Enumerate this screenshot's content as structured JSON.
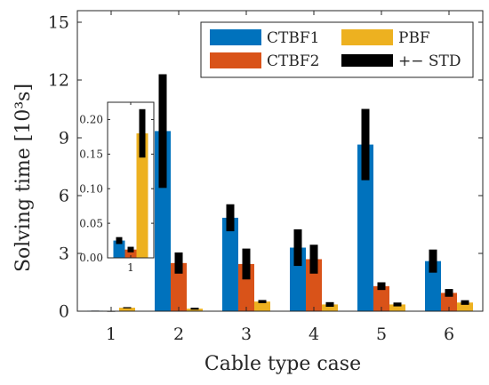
{
  "chart_data": [
    {
      "type": "bar",
      "xlabel": "Cable type case",
      "ylabel": "Solving time [10³s]",
      "categories": [
        "1",
        "2",
        "3",
        "4",
        "5",
        "6"
      ],
      "ylim": [
        0,
        15.6
      ],
      "yticks": [
        "0",
        "3",
        "6",
        "9",
        "12",
        "15"
      ],
      "ytick_values": [
        0,
        3,
        6,
        9,
        12,
        15
      ],
      "grid": false,
      "legend_position": "top-right",
      "series": [
        {
          "name": "CTBF1",
          "color": "#0072BD",
          "values": [
            0.025,
            9.35,
            4.85,
            3.3,
            8.65,
            2.6
          ],
          "std": [
            0.004,
            2.95,
            0.7,
            0.95,
            1.85,
            0.6
          ]
        },
        {
          "name": "CTBF2",
          "color": "#D95319",
          "values": [
            0.012,
            2.5,
            2.45,
            2.7,
            1.3,
            0.95
          ],
          "std": [
            0.003,
            0.55,
            0.8,
            0.75,
            0.2,
            0.2
          ]
        },
        {
          "name": "PBF",
          "color": "#EDB120",
          "values": [
            0.18,
            0.13,
            0.5,
            0.35,
            0.35,
            0.45
          ],
          "std": [
            0.03,
            0.05,
            0.08,
            0.12,
            0.1,
            0.12
          ]
        }
      ],
      "error_label": "+− STD",
      "error_color": "#000000"
    },
    {
      "type": "bar",
      "inset": true,
      "categories": [
        "1"
      ],
      "ylim": [
        0,
        0.225
      ],
      "yticks": [
        "0.00",
        "0.05",
        "0.10",
        "0.15",
        "0.20"
      ],
      "ytick_values": [
        0,
        0.05,
        0.1,
        0.15,
        0.2
      ],
      "series": [
        {
          "name": "CTBF1",
          "color": "#0072BD",
          "values": [
            0.025
          ],
          "std": [
            0.005
          ]
        },
        {
          "name": "CTBF2",
          "color": "#D95319",
          "values": [
            0.012
          ],
          "std": [
            0.004
          ]
        },
        {
          "name": "PBF",
          "color": "#EDB120",
          "values": [
            0.18
          ],
          "std": [
            0.035
          ]
        }
      ]
    }
  ]
}
